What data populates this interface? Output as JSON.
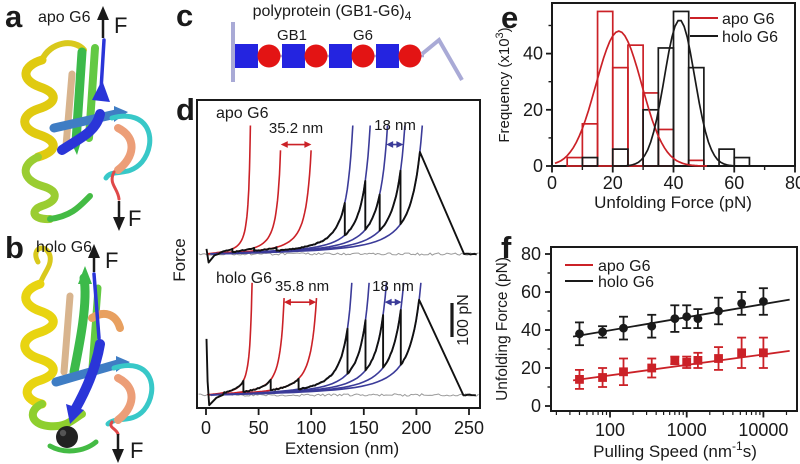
{
  "colors": {
    "red": "#cb2127",
    "navy": "#3b3b99",
    "black": "#1a1a1a",
    "gray": "#9a9a9a",
    "gb1_blue": "#2424e0",
    "g6_red": "#e31414",
    "lavender": "#a9aad6"
  },
  "panels": {
    "a": {
      "letter": "a",
      "title": "apo G6",
      "force_label": "F"
    },
    "b": {
      "letter": "b",
      "title": "holo G6",
      "force_label": "F"
    },
    "c": {
      "letter": "c",
      "title_main": "polyprotein (GB1-G6)",
      "title_sub": "4",
      "gb1_label": "GB1",
      "g6_label": "G6"
    },
    "d": {
      "letter": "d"
    },
    "e": {
      "letter": "e"
    },
    "f": {
      "letter": "f"
    }
  },
  "chart_data": [
    {
      "panel": "e",
      "type": "bar",
      "subtype": "histogram",
      "xlabel": "Unfolding Force (pN)",
      "ylabel_parts": [
        "Frequency (x10",
        "3",
        ")"
      ],
      "xlim": [
        0,
        80
      ],
      "ylim": [
        0,
        58
      ],
      "xticks": [
        0,
        20,
        40,
        60,
        80
      ],
      "yticks": [
        0,
        20,
        40
      ],
      "bin_width": 5,
      "legend_position": "top-right",
      "series": [
        {
          "name": "apo G6",
          "color": "#cb2127",
          "bins_start": 5,
          "counts": [
            3,
            15,
            55,
            35,
            43,
            26,
            13,
            0,
            2
          ],
          "fit": {
            "mean": 22,
            "sd": 7.5,
            "peak": 48
          }
        },
        {
          "name": "holo G6",
          "color": "#1a1a1a",
          "bins_start": 10,
          "counts": [
            3,
            0,
            6,
            0,
            20,
            42,
            55,
            35,
            0,
            6,
            3
          ],
          "fit": {
            "mean": 42,
            "sd": 5,
            "peak": 52
          }
        }
      ]
    },
    {
      "panel": "f",
      "type": "scatter",
      "x_scale": "log",
      "xlabel_parts": [
        "Pulling Speed (nm",
        "-1",
        "s)"
      ],
      "ylabel": "Unfolding Force (pN)",
      "xlim": [
        17,
        28000
      ],
      "ylim": [
        0,
        84
      ],
      "xticks": [
        100,
        1000,
        10000
      ],
      "yticks": [
        0,
        20,
        40,
        60,
        80
      ],
      "legend_position": "top-left",
      "x": [
        40,
        80,
        150,
        350,
        700,
        1000,
        1400,
        2600,
        5200,
        10000
      ],
      "series": [
        {
          "name": "apo G6",
          "color": "#cb2127",
          "marker": "square",
          "y": [
            14,
            15,
            18,
            20,
            24,
            23,
            24,
            25,
            28,
            28
          ],
          "yerr": [
            5,
            5,
            7,
            5,
            2,
            3,
            4,
            6,
            8,
            8
          ],
          "fit_line": {
            "x": [
              33,
              22000
            ],
            "y": [
              13.5,
              29
            ]
          }
        },
        {
          "name": "holo G6",
          "color": "#1a1a1a",
          "marker": "circle",
          "y": [
            38,
            39,
            41,
            42,
            46,
            47,
            46,
            50,
            54,
            55
          ],
          "yerr": [
            6,
            3,
            6,
            6,
            7,
            6,
            5,
            7,
            6,
            7
          ],
          "fit_line": {
            "x": [
              33,
              22000
            ],
            "y": [
              36.5,
              56
            ]
          }
        }
      ]
    },
    {
      "panel": "d",
      "type": "line",
      "subtype": "force-extension",
      "xlabel": "Extension (nm)",
      "ylabel": "Force",
      "xlim": [
        0,
        260
      ],
      "xticks": [
        0,
        50,
        100,
        150,
        200,
        250
      ],
      "scale_bar": {
        "label": "100 pN",
        "pN": 100
      },
      "traces": [
        {
          "name": "apo G6",
          "g6_fits": {
            "color": "#cb2127",
            "Lc": [
              46,
              78,
              110
            ],
            "delta_label": "35.2 nm"
          },
          "gb1_fits": {
            "color": "#3b3b99",
            "Lc": [
              152,
              170,
              188,
              206,
              224
            ],
            "delta_label": "18 nm"
          },
          "g6_peak_forces": [
            15,
            18,
            20
          ],
          "gb1_peak_forces": [
            150,
            215,
            175,
            245
          ],
          "detach_force": 300,
          "start": [
            [
              0.5,
              15
            ],
            [
              2.5,
              -25
            ],
            [
              8,
              -4
            ],
            [
              12,
              0
            ]
          ]
        },
        {
          "name": "holo G6",
          "g6_fits": {
            "color": "#cb2127",
            "Lc": [
              48,
              82,
              116
            ],
            "delta_label": "35.8 nm"
          },
          "gb1_fits": {
            "color": "#3b3b99",
            "Lc": [
              152,
              170,
              188,
              206,
              224
            ],
            "delta_label": "18 nm"
          },
          "g6_peak_forces": [
            42,
            45,
            48
          ],
          "gb1_peak_forces": [
            195,
            220,
            235,
            250
          ],
          "detach_force": 280,
          "start": [
            [
              0.5,
              165
            ],
            [
              1.5,
              40
            ],
            [
              3,
              -30
            ],
            [
              10,
              -8
            ],
            [
              16,
              0
            ]
          ]
        }
      ]
    }
  ]
}
